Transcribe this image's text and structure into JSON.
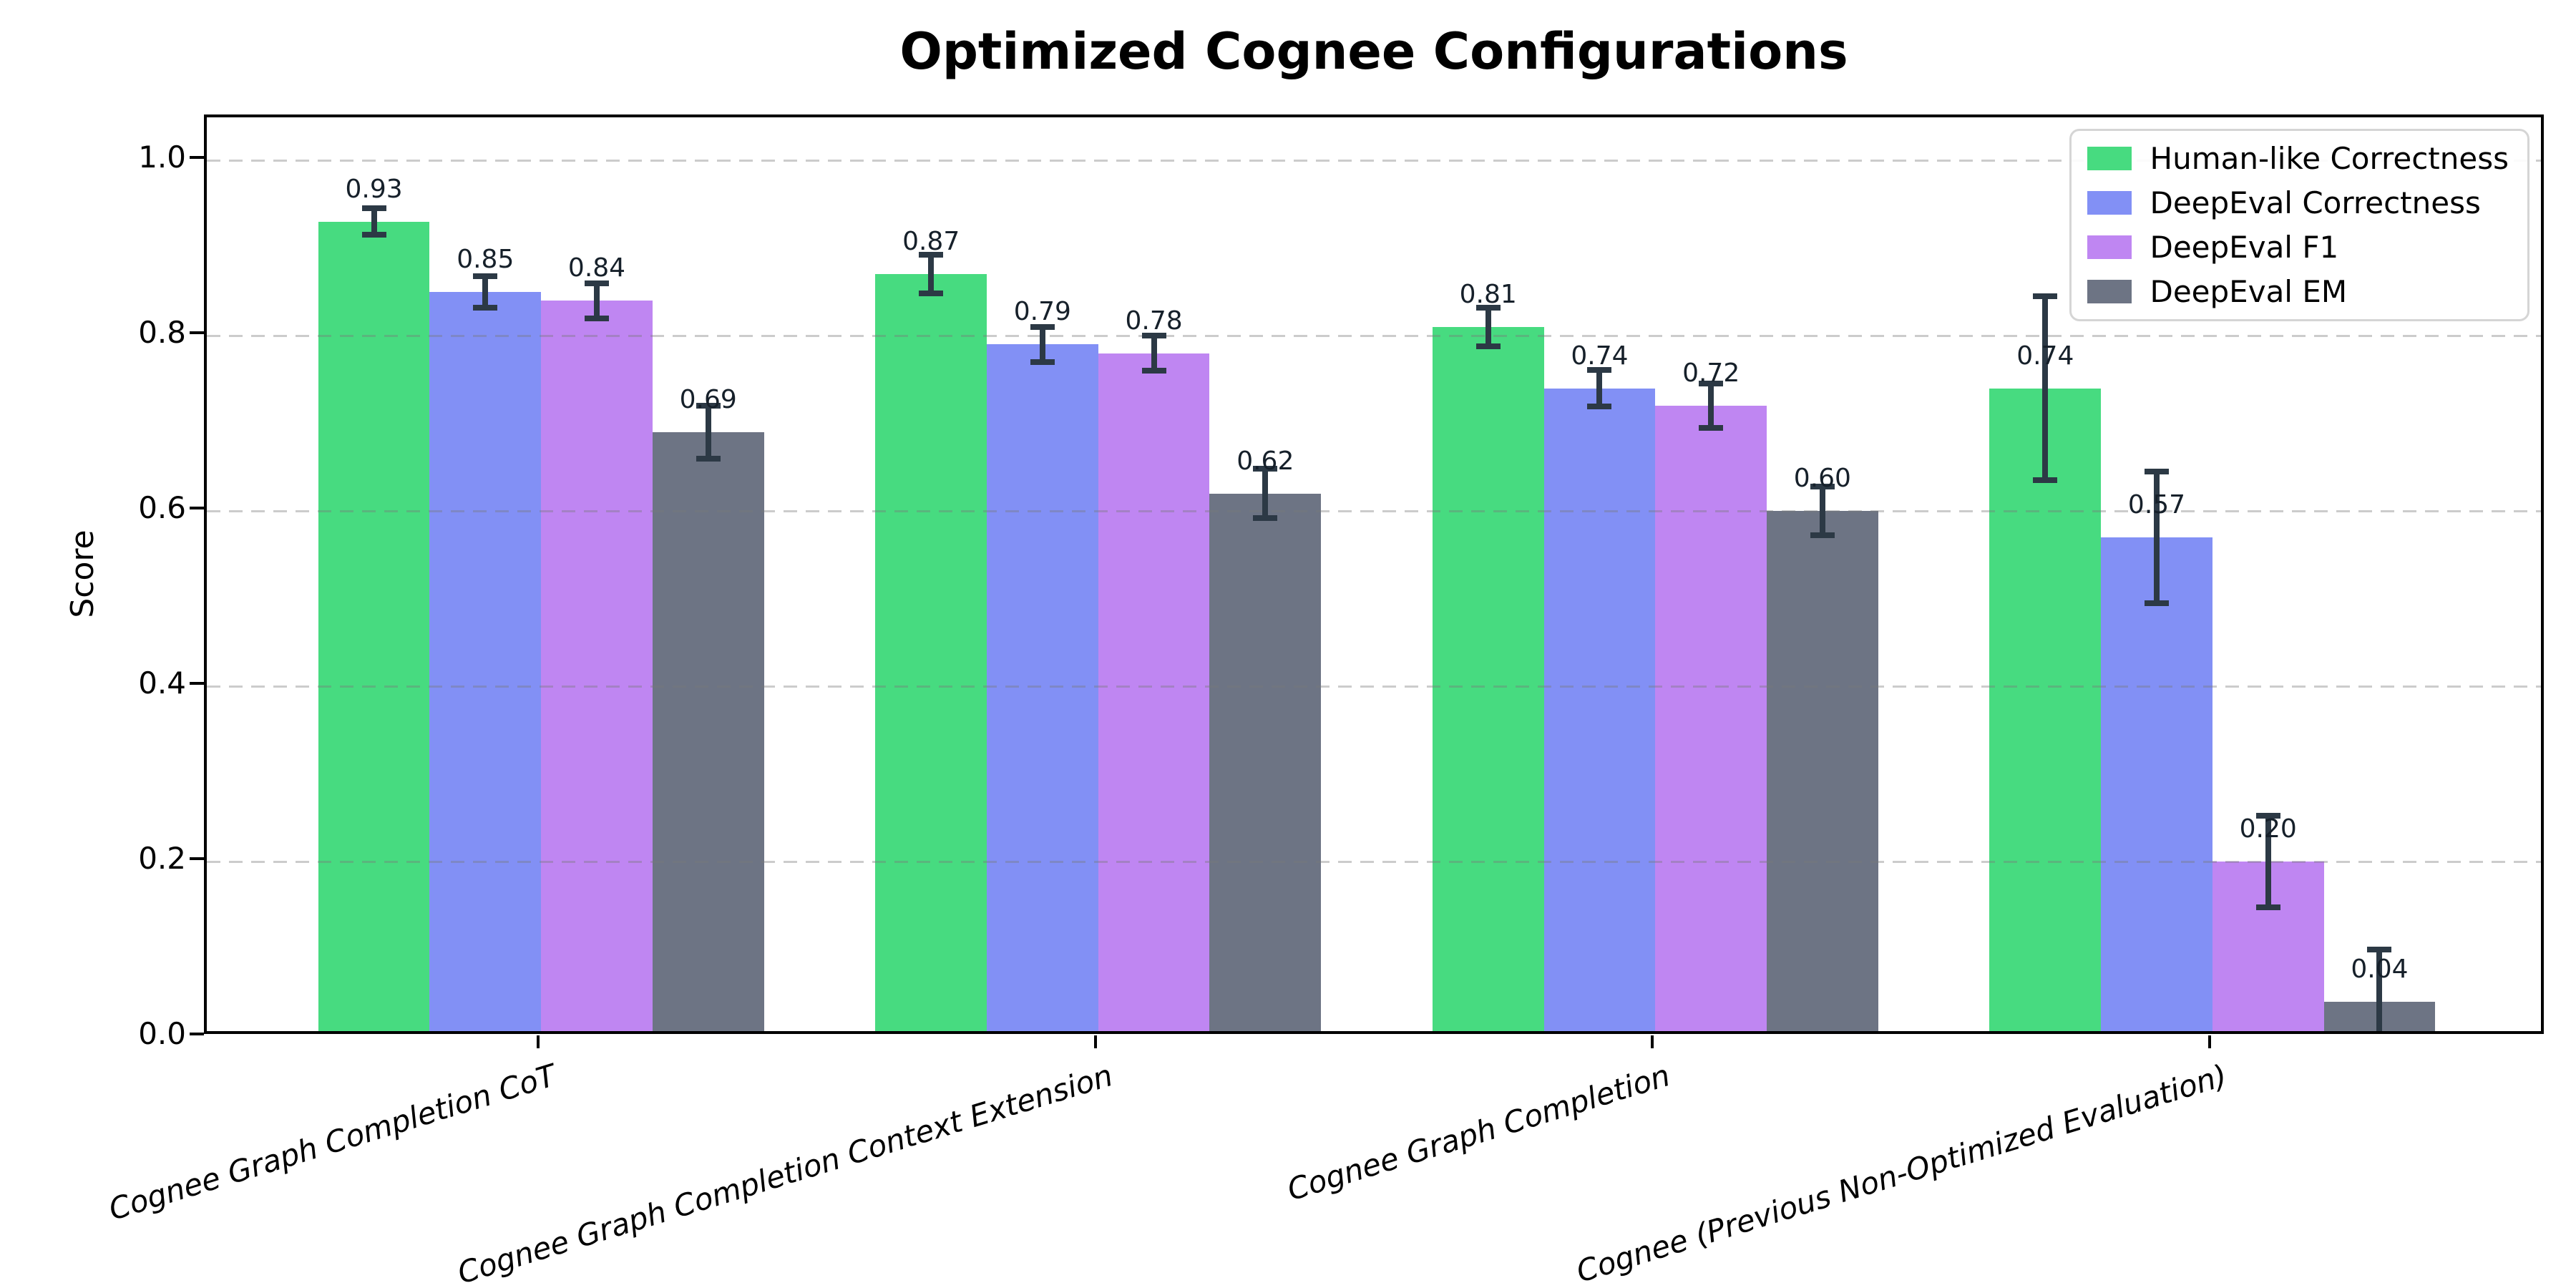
{
  "figure": {
    "title": "Optimized Cognee Configurations",
    "ylabel": "Score"
  },
  "chart_data": {
    "type": "bar",
    "title": "Optimized Cognee Configurations",
    "xlabel": "",
    "ylabel": "Score",
    "ylim": [
      0,
      1.05
    ],
    "yticks": [
      0,
      0.2,
      0.4,
      0.6,
      0.8,
      1.0
    ],
    "grid": "horizontal dashed, drawn over bars",
    "legend_position": "upper right",
    "error_bars": true,
    "value_label_decimals": 2,
    "categories": [
      "Cognee Graph Completion CoT",
      "Cognee Graph Completion Context Extension",
      "Cognee Graph Completion",
      "Cognee (Previous Non-Optimized Evaluation)"
    ],
    "series": [
      {
        "name": "Human-like Correctness",
        "color": "#47db80",
        "values": [
          0.93,
          0.87,
          0.81,
          0.74
        ],
        "errors": [
          0.015,
          0.022,
          0.022,
          0.105
        ]
      },
      {
        "name": "DeepEval Correctness",
        "color": "#8290f5",
        "values": [
          0.85,
          0.79,
          0.74,
          0.57
        ],
        "errors": [
          0.018,
          0.02,
          0.021,
          0.075
        ]
      },
      {
        "name": "DeepEval F1",
        "color": "#bf86f2",
        "values": [
          0.84,
          0.78,
          0.72,
          0.2
        ],
        "errors": [
          0.02,
          0.02,
          0.025,
          0.052
        ]
      },
      {
        "name": "DeepEval EM",
        "color": "#6d7484",
        "values": [
          0.69,
          0.62,
          0.6,
          0.04
        ],
        "errors": [
          0.03,
          0.028,
          0.028,
          0.06
        ]
      }
    ],
    "error_bar_color": "#2c3945",
    "colors": {
      "background": "#ffffff",
      "grid": "#d0d0d0",
      "spine": "#000000"
    }
  }
}
